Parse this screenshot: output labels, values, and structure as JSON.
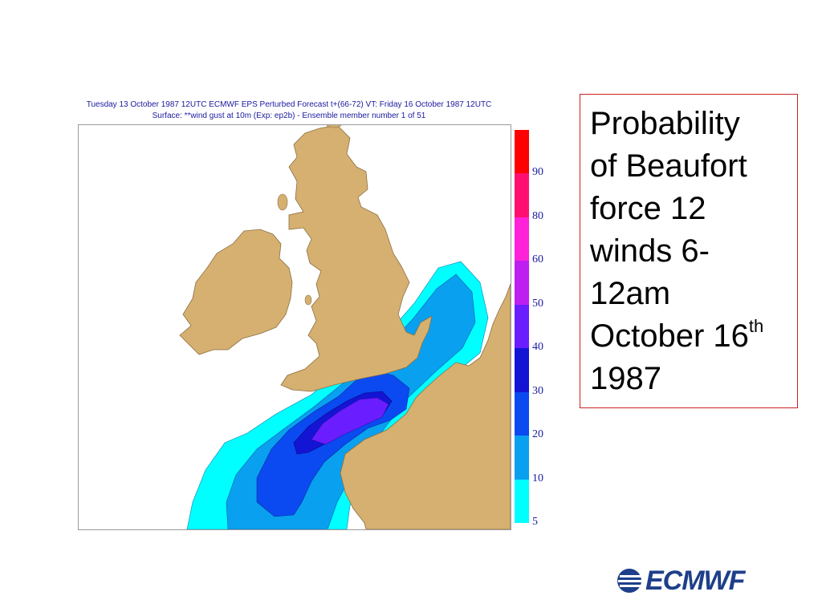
{
  "map": {
    "title_line1": "Tuesday 13 October 1987 12UTC ECMWF  EPS Perturbed Forecast t+(66-72) VT: Friday 16 October 1987 12UTC",
    "title_line2": "Surface: **wind gust at 10m (Exp: ep2b) - Ensemble member number 1 of  51",
    "colors": {
      "land": "#d6b070",
      "coast": "#8a6e42",
      "outline": "#9a9a9a"
    }
  },
  "colorbar": {
    "levels": [
      {
        "label": "5",
        "color": "#00ffff"
      },
      {
        "label": "10",
        "color": "#0aa0f0"
      },
      {
        "label": "20",
        "color": "#0a4af0"
      },
      {
        "label": "30",
        "color": "#1414d4"
      },
      {
        "label": "40",
        "color": "#6a1eff"
      },
      {
        "label": "50",
        "color": "#bf1ef0"
      },
      {
        "label": "60",
        "color": "#ff22d8"
      },
      {
        "label": "80",
        "color": "#ff1070"
      },
      {
        "label": "90",
        "color": "#ff0000"
      }
    ]
  },
  "caption": {
    "line1": "Probability",
    "line2": "of  Beaufort",
    "line3": "force 12",
    "line4": "winds 6-",
    "line5": "12am",
    "line6_main": "October 16",
    "line6_sup": "th",
    "line7": "1987"
  },
  "logo": {
    "text": "ECMWF",
    "icon": "ecmwf-logo-icon"
  }
}
